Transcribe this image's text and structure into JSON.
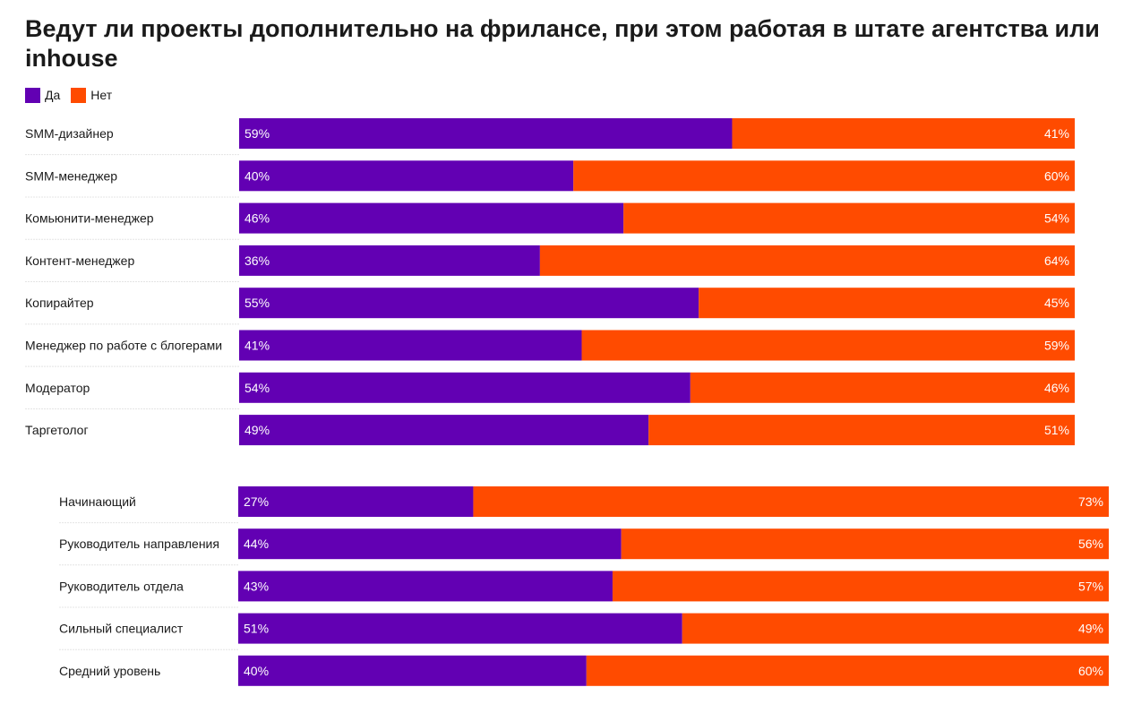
{
  "title": "Ведут ли проекты дополнительно на фрилансе, при этом работая в штате агентства или inhouse",
  "colors": {
    "yes": "#6200b3",
    "no": "#ff4b00"
  },
  "legend": [
    {
      "label": "Да",
      "color": "#6200b3"
    },
    {
      "label": "Нет",
      "color": "#ff4b00"
    }
  ],
  "chart_data": [
    {
      "type": "bar",
      "orientation": "horizontal",
      "stacked": true,
      "percent": true,
      "categories": [
        "SMM-дизайнер",
        "SMM-менеджер",
        "Комьюнити-менеджер",
        "Контент-менеджер",
        "Копирайтер",
        "Менеджер по работе с блогерами",
        "Модератор",
        "Таргетолог"
      ],
      "series": [
        {
          "name": "Да",
          "values": [
            59,
            40,
            46,
            36,
            55,
            41,
            54,
            49
          ],
          "labels": [
            "59%",
            "40%",
            "46%",
            "36%",
            "55%",
            "41%",
            "54%",
            "49%"
          ]
        },
        {
          "name": "Нет",
          "values": [
            41,
            60,
            54,
            64,
            45,
            59,
            46,
            51
          ],
          "labels": [
            "41%",
            "60%",
            "54%",
            "64%",
            "45%",
            "59%",
            "46%",
            "51%"
          ]
        }
      ],
      "xlim": [
        0,
        100
      ],
      "legend_position": "top-left"
    },
    {
      "type": "bar",
      "orientation": "horizontal",
      "stacked": true,
      "percent": true,
      "categories": [
        "Начинающий",
        "Руководитель направления",
        "Руководитель отдела",
        "Сильный специалист",
        "Средний уровень"
      ],
      "series": [
        {
          "name": "Да",
          "values": [
            27,
            44,
            43,
            51,
            40
          ],
          "labels": [
            "27%",
            "44%",
            "43%",
            "51%",
            "40%"
          ]
        },
        {
          "name": "Нет",
          "values": [
            73,
            56,
            57,
            49,
            60
          ],
          "labels": [
            "73%",
            "56%",
            "57%",
            "49%",
            "60%"
          ]
        }
      ],
      "xlim": [
        0,
        100
      ]
    }
  ]
}
